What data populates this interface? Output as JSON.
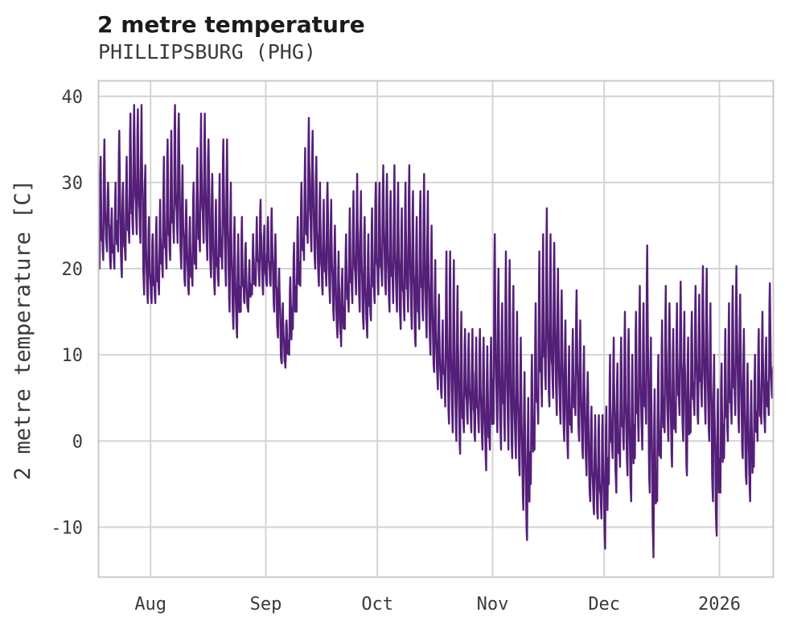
{
  "page": {
    "background": "#ffffff"
  },
  "header": {
    "title": "2 metre temperature",
    "subtitle": "PHILLIPSBURG (PHG)"
  },
  "chart_data": {
    "type": "line",
    "title": "2 metre temperature",
    "subtitle": "PHILLIPSBURG (PHG)",
    "ylabel": "2 metre temperature [C]",
    "xlabel": "",
    "units": "C",
    "legend": "none",
    "grid": true,
    "line_color": "#541f78",
    "grid_color": "#d4d4d4",
    "frame_color": "#c9c9c9",
    "tick_color": "#3a3a3a",
    "ylim": [
      -15.8,
      41.8
    ],
    "y_ticks": [
      40,
      30,
      20,
      10,
      0,
      -10
    ],
    "x_start": "2025-07-18",
    "x_end": "2026-01-15",
    "x_span_days": 181.5,
    "x_ticks": [
      {
        "label": "Aug",
        "day": 14
      },
      {
        "label": "Sep",
        "day": 45
      },
      {
        "label": "Oct",
        "day": 75
      },
      {
        "label": "Nov",
        "day": 106
      },
      {
        "label": "Dec",
        "day": 136
      },
      {
        "label": "2026",
        "day": 167
      }
    ],
    "sampling_note": "hourly series shown; values summarized here as daily min/max envelope in C, diurnal cycle oscillates between them",
    "daily": {
      "start_date": "2025-07-18",
      "tmax": [
        33,
        35,
        30,
        27,
        30,
        36,
        30,
        33,
        38,
        39,
        38.5,
        39,
        32,
        26,
        24,
        26,
        28,
        33,
        35,
        36,
        39,
        38,
        32,
        28,
        26,
        30,
        34,
        38,
        38,
        35,
        31,
        28,
        31,
        35,
        35,
        30,
        26,
        24,
        26,
        23,
        21,
        24,
        26,
        28,
        25,
        26,
        27,
        24,
        20,
        16,
        14,
        19,
        23,
        26,
        30,
        34,
        37.5,
        36,
        33,
        30,
        28,
        30,
        28,
        25,
        22,
        20,
        24,
        27,
        29,
        31,
        29,
        26,
        24,
        27,
        30,
        30,
        32,
        31,
        29,
        32,
        30,
        27,
        30,
        32,
        29,
        26,
        29,
        31,
        29,
        25,
        21,
        17,
        14,
        22,
        22,
        21,
        18,
        15,
        13,
        12.5,
        13,
        12,
        13,
        12,
        11,
        12,
        24,
        20,
        16,
        22,
        21,
        18,
        15,
        12,
        8,
        5,
        10,
        16,
        22,
        24,
        27,
        24,
        23,
        20,
        17.5,
        14,
        11,
        13,
        17.5,
        14,
        11,
        8,
        4,
        3,
        3,
        3,
        4,
        10,
        12,
        9,
        12,
        15,
        13,
        10,
        15,
        18,
        16,
        22.7,
        12,
        6,
        10,
        14,
        18,
        16,
        13,
        16,
        18.5,
        15,
        12,
        15,
        18,
        17,
        20.3,
        20,
        16,
        10,
        6,
        9,
        13,
        16,
        18,
        20.3,
        17,
        13,
        9,
        7,
        10,
        13,
        15,
        12,
        18.3,
        10
      ],
      "tmin": [
        20,
        21,
        22,
        20,
        20,
        22,
        19,
        21,
        23,
        24,
        24,
        23,
        17,
        16,
        16,
        16,
        17,
        19,
        20,
        21,
        23,
        23,
        20,
        18,
        17,
        18,
        20,
        22,
        23,
        21,
        19,
        17,
        18,
        20,
        18,
        15,
        13,
        12,
        15,
        16,
        15,
        17,
        18,
        18,
        17,
        18,
        18,
        15,
        12,
        9,
        8.5,
        10,
        13,
        15,
        18,
        21,
        23,
        22,
        20,
        18,
        17,
        18,
        16,
        14,
        12,
        11,
        13,
        15,
        16,
        17,
        15,
        13,
        12,
        14,
        16,
        17,
        18,
        17,
        15,
        16,
        15,
        13,
        14,
        15,
        13,
        11,
        13,
        14,
        12,
        10,
        8,
        6,
        5,
        4,
        2,
        1,
        0,
        -1.5,
        1,
        2,
        1,
        0,
        1,
        -1,
        -3.4,
        -1,
        2,
        1,
        -1,
        0,
        -1,
        -2,
        -2,
        -4,
        -8,
        -11.5,
        -5,
        -1,
        2,
        4,
        6,
        4,
        5,
        3,
        2,
        0,
        -2,
        1,
        3,
        0,
        -2,
        -4,
        -7,
        -8.5,
        -9,
        -9,
        -12.5,
        -5,
        -2,
        -6,
        -3,
        -1,
        -4,
        -7,
        -2,
        0,
        -1,
        2,
        -6,
        -13.5,
        -7,
        -2,
        1,
        0,
        -3,
        1,
        3,
        0,
        -4,
        1,
        3,
        2,
        4,
        2,
        0,
        -7,
        -11,
        -6,
        -2,
        0,
        2,
        3,
        1,
        -2,
        -5,
        -7,
        -3,
        0,
        2,
        1,
        3,
        5
      ]
    }
  }
}
